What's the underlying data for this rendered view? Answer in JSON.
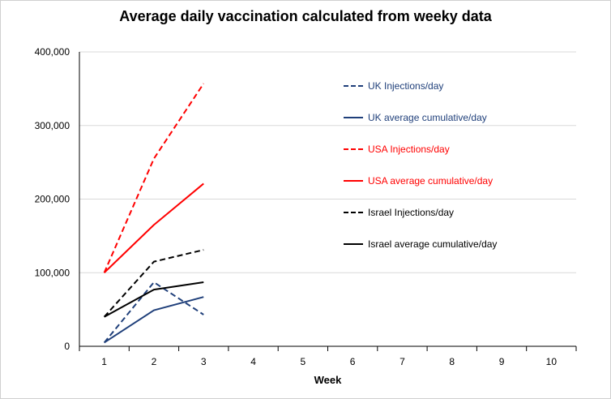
{
  "chart_data": {
    "type": "line",
    "title": "Average daily vaccination calculated from weeky data",
    "xlabel": "Week",
    "ylabel": "",
    "x": [
      1,
      2,
      3,
      4,
      5,
      6,
      7,
      8,
      9,
      10
    ],
    "xlim": [
      0.5,
      10.5
    ],
    "ylim": [
      0,
      400000
    ],
    "y_ticks": [
      "0",
      "100,000",
      "200,000",
      "300,000",
      "400,000"
    ],
    "grid": "horizontal",
    "legend_position": "right",
    "series": [
      {
        "name": "UK Injections/day",
        "color": "#1f3f7a",
        "dash": true,
        "x": [
          1,
          2,
          3
        ],
        "values": [
          5000,
          87000,
          43000
        ]
      },
      {
        "name": "UK average cumulative/day",
        "color": "#1f3f7a",
        "dash": false,
        "x": [
          1,
          2,
          3
        ],
        "values": [
          5000,
          49000,
          67000
        ]
      },
      {
        "name": "USA Injections/day",
        "color": "#ff0000",
        "dash": true,
        "x": [
          1,
          2,
          3
        ],
        "values": [
          100000,
          255000,
          357000
        ]
      },
      {
        "name": "USA average cumulative/day",
        "color": "#ff0000",
        "dash": false,
        "x": [
          1,
          2,
          3
        ],
        "values": [
          100000,
          165000,
          221000
        ]
      },
      {
        "name": "Israel Injections/day",
        "color": "#000000",
        "dash": true,
        "x": [
          1,
          2,
          3
        ],
        "values": [
          40000,
          115000,
          131000
        ]
      },
      {
        "name": "Israel average cumulative/day",
        "color": "#000000",
        "dash": false,
        "x": [
          1,
          2,
          3
        ],
        "values": [
          40000,
          77000,
          87000
        ]
      }
    ]
  }
}
